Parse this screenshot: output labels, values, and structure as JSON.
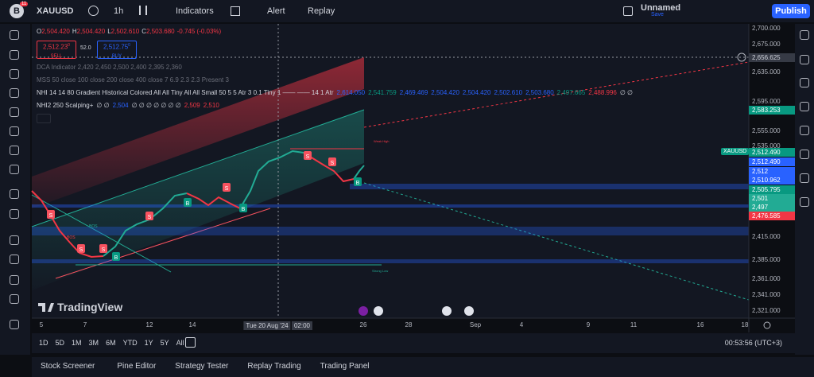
{
  "toolbar": {
    "badge": "11",
    "symbol": "XAUUSD",
    "interval": "1h",
    "indicators": "Indicators",
    "alert": "Alert",
    "replay": "Replay",
    "layout_name": "Unnamed",
    "save_state": "Save",
    "publish": "Publish"
  },
  "legend": {
    "ohlc": [
      {
        "key": "O",
        "value": "2,504.420"
      },
      {
        "key": "H",
        "value": "2,504.420"
      },
      {
        "key": "L",
        "value": "2,502.610"
      },
      {
        "key": "C",
        "value": "2,503.680"
      }
    ],
    "change": "-0.745 (-0.03%)",
    "sell": {
      "price": "2,512.23",
      "digit": "0",
      "label": "SELL"
    },
    "spread": "52.0",
    "buy": {
      "price": "2,512.75",
      "digit": "0",
      "label": "BUY"
    }
  },
  "indicators": [
    {
      "text": "DCA Indicator 2,420 2,450 2,500 2,400 2,395 2,360",
      "values": []
    },
    {
      "text": "MSS 50 close 100 close 200 close 400 close 7 6.9 2.3 2.3 Present 3",
      "values": []
    },
    {
      "text": "NHI 14 14 80 Gradient Historical Colored All All Tiny All All Small 50 5 5 Atr 3 0.1 Tiny 1 —— —— 14 1 Atr",
      "values": [
        {
          "text": "2,614.050",
          "color": "#2962ff"
        },
        {
          "text": "2,541.759",
          "color": "#089981"
        },
        {
          "text": "2,469.469",
          "color": "#2962ff"
        },
        {
          "text": "2,504.420",
          "color": "#2962ff"
        },
        {
          "text": "2,504.420",
          "color": "#2962ff"
        },
        {
          "text": "2,502.610",
          "color": "#2962ff"
        },
        {
          "text": "2,503.680",
          "color": "#2962ff"
        },
        {
          "text": "2,497.665",
          "color": "#089981"
        },
        {
          "text": "2,488.996",
          "color": "#f23645"
        },
        {
          "text": "∅ ∅",
          "color": "#d1d4dc"
        }
      ]
    },
    {
      "text": "NHI2 250 Scalping+",
      "values": [
        {
          "text": "∅ ∅",
          "color": "#d1d4dc"
        },
        {
          "text": "2,504",
          "color": "#2962ff"
        },
        {
          "text": "∅ ∅ ∅ ∅ ∅ ∅ ∅",
          "color": "#d1d4dc"
        },
        {
          "text": "2,509",
          "color": "#f23645"
        },
        {
          "text": "2,510",
          "color": "#f23645"
        }
      ]
    }
  ],
  "price_axis": [
    "2,700.000",
    "2,675.000",
    "2,656.625",
    "2,635.000",
    "2,595.000",
    "2,583.253",
    "2,555.000",
    "2,535.000",
    "2,512.490",
    "2,512.490",
    "2,512",
    "2,510.962",
    "2,505.795",
    "2,501",
    "2,497",
    "2,476.585",
    "2,415.000",
    "2,385.000",
    "2,361.000",
    "2,341.000",
    "2,321.000"
  ],
  "price_tag": "XAUUSD",
  "time_axis": [
    "5",
    "7",
    "12",
    "14",
    "Tue 20 Aug '24",
    "02:00",
    "26",
    "28",
    "Sep",
    "4",
    "9",
    "11",
    "16",
    "18"
  ],
  "annotations": {
    "weak_high": "Weak High",
    "strong_low": "Strong Low",
    "bos": "BOS",
    "buy": "B",
    "sell": "S"
  },
  "watermark": "TradingView",
  "ranges": [
    "1D",
    "5D",
    "1M",
    "3M",
    "6M",
    "YTD",
    "1Y",
    "5Y",
    "All"
  ],
  "clock": "00:53:56 (UTC+3)",
  "bottom_tabs": [
    "Stock Screener",
    "Pine Editor",
    "Strategy Tester",
    "Replay Trading",
    "Trading Panel"
  ]
}
